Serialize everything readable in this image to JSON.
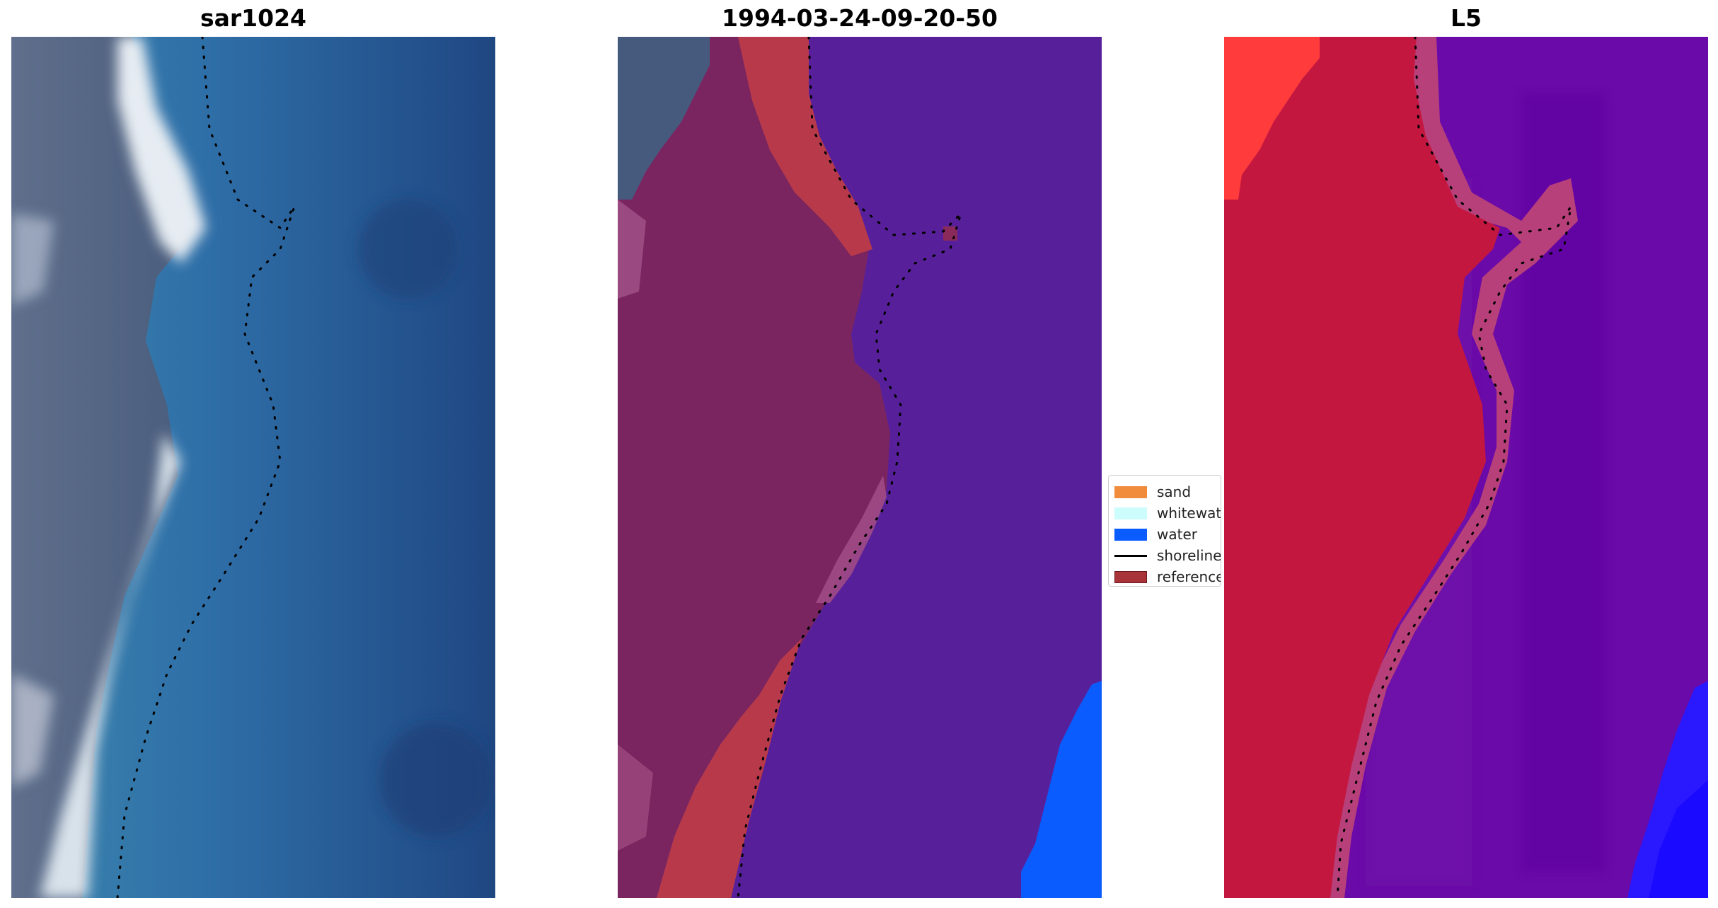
{
  "panels": [
    {
      "title": "sar1024"
    },
    {
      "title": "1994-03-24-09-20-50"
    },
    {
      "title": "L5"
    }
  ],
  "legend": [
    {
      "label": "sand",
      "color": "#f28c3d",
      "kind": "patch",
      "icon": "sand-swatch-icon"
    },
    {
      "label": "whitewater",
      "color": "#ccfcfc",
      "kind": "patch",
      "icon": "whitewater-swatch-icon"
    },
    {
      "label": "water",
      "color": "#0a5cff",
      "kind": "patch",
      "icon": "water-swatch-icon"
    },
    {
      "label": "shoreline",
      "color": "#000000",
      "kind": "line",
      "icon": "shoreline-line-icon"
    },
    {
      "label": "reference",
      "color": "#a8343a",
      "kind": "patch",
      "icon": "reference-swatch-icon"
    }
  ],
  "colors": {
    "sar_water": "#2a5a98",
    "sar_land": "#4e6180",
    "sar_surf": "#e8eef2",
    "class_land": "#7a2560",
    "class_water": "#57209a",
    "class_reference": "#b83a4a",
    "class_water_px": "#0a5cff",
    "l5_land": "#c41740",
    "l5_water": "#6a0aa8",
    "l5_red": "#ff3b3b",
    "l5_blue": "#2a18ff"
  }
}
